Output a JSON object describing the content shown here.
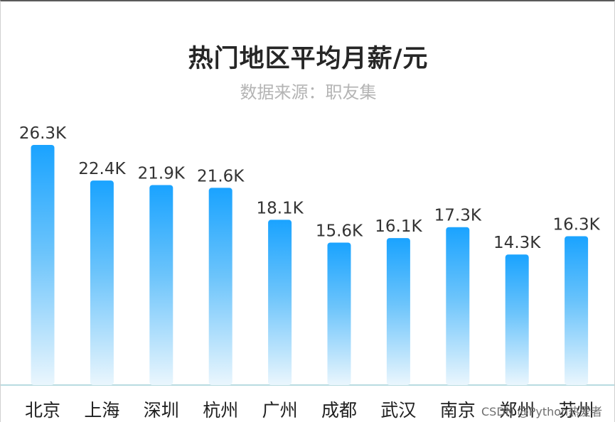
{
  "chart_data": {
    "type": "bar",
    "title": "热门地区平均月薪/元",
    "subtitle": "数据来源：职友集",
    "categories": [
      "北京",
      "上海",
      "深圳",
      "杭州",
      "广州",
      "成都",
      "武汉",
      "南京",
      "郑州",
      "苏州"
    ],
    "values": [
      26.3,
      22.4,
      21.9,
      21.6,
      18.1,
      15.6,
      16.1,
      17.3,
      14.3,
      16.3
    ],
    "value_labels": [
      "26.3K",
      "22.4K",
      "21.9K",
      "21.6K",
      "18.1K",
      "15.6K",
      "16.1K",
      "17.3K",
      "14.3K",
      "16.3K"
    ],
    "xlabel": "",
    "ylabel": "",
    "ylim": [
      0,
      26.3
    ],
    "grid": false,
    "legend": "none",
    "colors": {
      "bar_top": "#1aa3ff",
      "bar_bottom": "#eaf6fd",
      "baseline": "#b8dbe0"
    }
  },
  "watermark": "CSDN @Python热爱者"
}
